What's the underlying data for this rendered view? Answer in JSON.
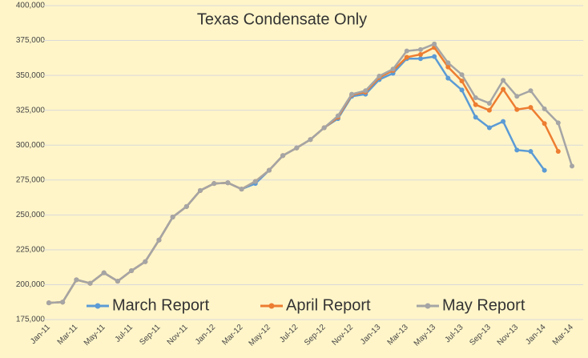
{
  "chart_data": {
    "type": "line",
    "title": "Texas Condensate Only",
    "categories": [
      "Jan-11",
      null,
      "Mar-11",
      null,
      "May-11",
      null,
      "Jul-11",
      null,
      "Sep-11",
      null,
      "Nov-11",
      null,
      "Jan-12",
      null,
      "Mar-12",
      null,
      "May-12",
      null,
      "Jul-12",
      null,
      "Sep-12",
      null,
      "Nov-12",
      null,
      "Jan-13",
      null,
      "Mar-13",
      null,
      "May-13",
      null,
      "Jul-13",
      null,
      "Sep-13",
      null,
      "Nov-13",
      null,
      "Jan-14",
      null,
      "Mar-14"
    ],
    "series": [
      {
        "name": "March Report",
        "color": "#5b9bd5",
        "values": [
          187000,
          187500,
          203500,
          201000,
          208500,
          202500,
          210000,
          216500,
          232000,
          248500,
          256000,
          267500,
          272500,
          273000,
          268500,
          272500,
          282000,
          292500,
          298000,
          304000,
          312500,
          319000,
          335000,
          336500,
          347000,
          351500,
          362000,
          362000,
          363500,
          348000,
          339500,
          320000,
          312500,
          317000,
          296500,
          295500,
          282000,
          null,
          null
        ]
      },
      {
        "name": "April Report",
        "color": "#ed7d31",
        "values": [
          187000,
          187500,
          203500,
          201000,
          208500,
          202500,
          210000,
          216500,
          232000,
          248500,
          256000,
          267500,
          272500,
          273000,
          268500,
          274000,
          282000,
          292500,
          298000,
          304000,
          312500,
          320000,
          336000,
          338000,
          348500,
          353500,
          363000,
          365000,
          370000,
          356000,
          346000,
          329000,
          325000,
          340000,
          325500,
          327000,
          315500,
          295500,
          null
        ]
      },
      {
        "name": "May Report",
        "color": "#a5a5a5",
        "values": [
          187000,
          187500,
          203500,
          201000,
          208500,
          202500,
          210000,
          216500,
          232000,
          248500,
          256000,
          267500,
          272500,
          273000,
          268500,
          274000,
          282000,
          292500,
          298000,
          304000,
          312500,
          321000,
          336500,
          339000,
          349500,
          354500,
          367500,
          368500,
          372500,
          359000,
          350500,
          334000,
          330000,
          346500,
          335000,
          339000,
          326000,
          316000,
          285000
        ]
      }
    ],
    "ylim": [
      175000,
      400000
    ],
    "yticks": [
      {
        "value": 175000,
        "label": "175,000"
      },
      {
        "value": 200000,
        "label": "200,000"
      },
      {
        "value": 225000,
        "label": "225,000"
      },
      {
        "value": 250000,
        "label": "250,000"
      },
      {
        "value": 275000,
        "label": "275,000"
      },
      {
        "value": 300000,
        "label": "300,000"
      },
      {
        "value": 325000,
        "label": "325,000"
      },
      {
        "value": 350000,
        "label": "350,000"
      },
      {
        "value": 375000,
        "label": "375,000"
      },
      {
        "value": 400000,
        "label": "400,000"
      }
    ],
    "grid": true,
    "legend": "bottom"
  }
}
